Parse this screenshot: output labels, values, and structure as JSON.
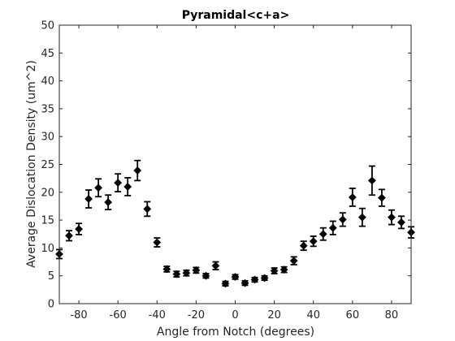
{
  "chart_data": {
    "type": "scatter",
    "title": "Pyramidal<c+a>",
    "xlabel": "Angle from Notch (degrees)",
    "ylabel": "Average Dislocation Density (um^2)",
    "xlim": [
      -90,
      90
    ],
    "ylim": [
      0,
      50
    ],
    "xticks": [
      -80,
      -60,
      -40,
      -20,
      0,
      20,
      40,
      60,
      80
    ],
    "yticks": [
      0,
      5,
      10,
      15,
      20,
      25,
      30,
      35,
      40,
      45,
      50
    ],
    "grid": false,
    "marker_color": "#000000",
    "points": [
      {
        "x": -90,
        "y": 8.9,
        "err": 0.8
      },
      {
        "x": -85,
        "y": 12.2,
        "err": 0.9
      },
      {
        "x": -80,
        "y": 13.4,
        "err": 1.0
      },
      {
        "x": -75,
        "y": 18.8,
        "err": 1.6
      },
      {
        "x": -70,
        "y": 20.8,
        "err": 1.6
      },
      {
        "x": -65,
        "y": 18.2,
        "err": 1.3
      },
      {
        "x": -60,
        "y": 21.7,
        "err": 1.6
      },
      {
        "x": -55,
        "y": 21.0,
        "err": 1.6
      },
      {
        "x": -50,
        "y": 23.9,
        "err": 1.8
      },
      {
        "x": -45,
        "y": 17.0,
        "err": 1.3
      },
      {
        "x": -40,
        "y": 11.0,
        "err": 0.8
      },
      {
        "x": -35,
        "y": 6.2,
        "err": 0.5
      },
      {
        "x": -30,
        "y": 5.3,
        "err": 0.5
      },
      {
        "x": -25,
        "y": 5.5,
        "err": 0.5
      },
      {
        "x": -20,
        "y": 6.0,
        "err": 0.5
      },
      {
        "x": -15,
        "y": 5.0,
        "err": 0.4
      },
      {
        "x": -10,
        "y": 6.8,
        "err": 0.7
      },
      {
        "x": -5,
        "y": 3.6,
        "err": 0.4
      },
      {
        "x": 0,
        "y": 4.8,
        "err": 0.4
      },
      {
        "x": 5,
        "y": 3.7,
        "err": 0.4
      },
      {
        "x": 10,
        "y": 4.3,
        "err": 0.4
      },
      {
        "x": 15,
        "y": 4.6,
        "err": 0.4
      },
      {
        "x": 20,
        "y": 5.9,
        "err": 0.5
      },
      {
        "x": 25,
        "y": 6.1,
        "err": 0.5
      },
      {
        "x": 30,
        "y": 7.7,
        "err": 0.7
      },
      {
        "x": 35,
        "y": 10.4,
        "err": 0.8
      },
      {
        "x": 40,
        "y": 11.2,
        "err": 0.9
      },
      {
        "x": 45,
        "y": 12.5,
        "err": 1.1
      },
      {
        "x": 50,
        "y": 13.6,
        "err": 1.2
      },
      {
        "x": 55,
        "y": 15.1,
        "err": 1.2
      },
      {
        "x": 60,
        "y": 19.1,
        "err": 1.6
      },
      {
        "x": 65,
        "y": 15.5,
        "err": 1.6
      },
      {
        "x": 70,
        "y": 22.1,
        "err": 2.6
      },
      {
        "x": 75,
        "y": 19.0,
        "err": 1.5
      },
      {
        "x": 80,
        "y": 15.5,
        "err": 1.3
      },
      {
        "x": 85,
        "y": 14.6,
        "err": 1.1
      },
      {
        "x": 90,
        "y": 12.8,
        "err": 1.0
      }
    ]
  }
}
